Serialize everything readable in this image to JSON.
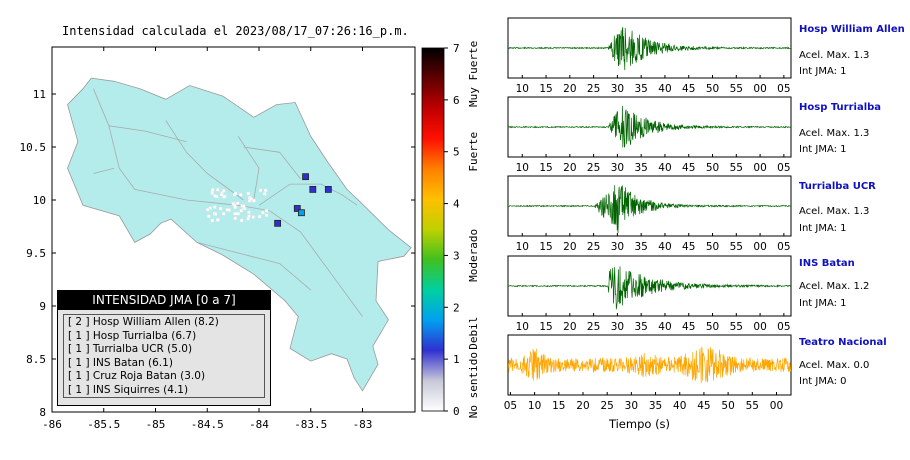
{
  "map": {
    "title": "Intensidad calculada el 2023/08/17_07:26:16_p.m.",
    "x_ticks": [
      "-86",
      "-85.5",
      "-85",
      "-84.5",
      "-84",
      "-83.5",
      "-83"
    ],
    "y_ticks": [
      "11",
      "10.5",
      "10",
      "9.5",
      "9",
      "8.5",
      "8"
    ],
    "stations_intensity": [
      {
        "lon": -83.55,
        "lat": 10.22,
        "jma": 1
      },
      {
        "lon": -83.48,
        "lat": 10.1,
        "jma": 1
      },
      {
        "lon": -83.33,
        "lat": 10.1,
        "jma": 1
      },
      {
        "lon": -83.63,
        "lat": 9.92,
        "jma": 1
      },
      {
        "lon": -83.59,
        "lat": 9.88,
        "jma": 2
      },
      {
        "lon": -83.82,
        "lat": 9.78,
        "jma": 1
      }
    ]
  },
  "colorbar": {
    "ticks": [
      "0",
      "1",
      "2",
      "3",
      "4",
      "5",
      "6",
      "7"
    ],
    "labels": [
      "No sentido",
      "Debil",
      "Moderado",
      "Fuerte",
      "Muy Fuerte"
    ],
    "colors": [
      "#ffffff",
      "#c8c8d8",
      "#3030d0",
      "#00a0f0",
      "#00d0a0",
      "#40c020",
      "#c0d000",
      "#ffc000",
      "#ff8000",
      "#ff1000",
      "#c00000",
      "#600000",
      "#000000"
    ]
  },
  "legend": {
    "title": "INTENSIDAD JMA [0 a 7]",
    "rows": [
      "[ 2 ]  Hosp William Allen (8.2)",
      "[ 1 ]  Hosp Turrialba (6.7)",
      "[ 1 ]  Turrialba UCR (5.0)",
      "[ 1 ]  INS Batan (6.1)",
      "[ 1 ]  Cruz Roja Batan (3.0)",
      "[ 1 ]  INS Siquirres (4.1)"
    ]
  },
  "traces": {
    "time_ticks": [
      "10",
      "15",
      "20",
      "25",
      "30",
      "35",
      "40",
      "45",
      "50",
      "55",
      "00",
      "05"
    ],
    "bottom_ticks": [
      "05",
      "10",
      "15",
      "20",
      "25",
      "30",
      "35",
      "40",
      "45",
      "50",
      "55",
      "00"
    ],
    "xlabel": "Tiempo (s)",
    "stations": [
      {
        "name": "Hosp William Allen",
        "accel": "Acel. Max. 1.3",
        "jma": "Int JMA: 1",
        "color": "#006400",
        "onset": 28,
        "peak": 31,
        "amp": 0.95,
        "decay": 5,
        "mode": "quake"
      },
      {
        "name": "Hosp Turrialba",
        "accel": "Acel. Max. 1.3",
        "jma": "Int JMA: 1",
        "color": "#006400",
        "onset": 28,
        "peak": 31,
        "amp": 0.9,
        "decay": 5,
        "mode": "quake"
      },
      {
        "name": "Turrialba UCR",
        "accel": "Acel. Max. 1.3",
        "jma": "Int JMA: 1",
        "color": "#006400",
        "onset": 25,
        "peak": 30,
        "amp": 1.0,
        "decay": 4,
        "mode": "quake"
      },
      {
        "name": "INS Batan",
        "accel": "Acel. Max. 1.2",
        "jma": "Int JMA: 1",
        "color": "#006400",
        "onset": 28,
        "peak": 28.5,
        "amp": 1.0,
        "decay": 7,
        "mode": "spike"
      },
      {
        "name": "Teatro Nacional",
        "accel": "Acel. Max. 0.0",
        "jma": "Int JMA: 0",
        "color": "#ffa500",
        "onset": 5,
        "peak": 10,
        "amp": 0.9,
        "decay": 0,
        "mode": "noise"
      }
    ]
  }
}
